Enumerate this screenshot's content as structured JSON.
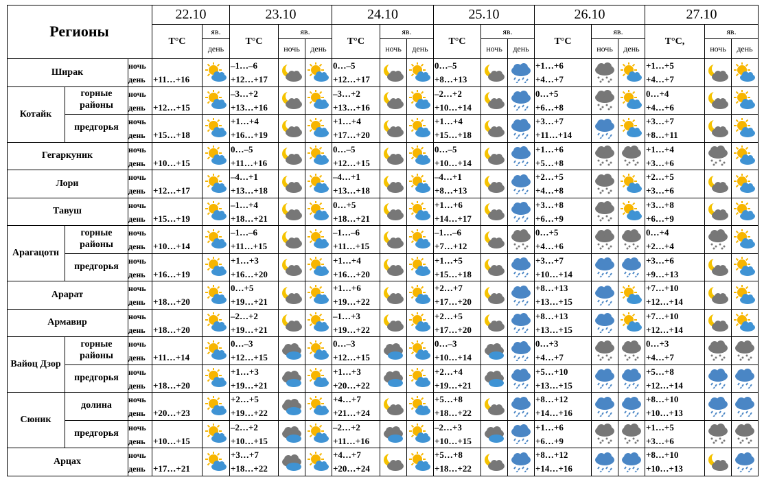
{
  "header": {
    "regions_label": "Регионы",
    "dates": [
      "22.10",
      "23.10",
      "24.10",
      "25.10",
      "26.10",
      "27.10"
    ],
    "temp_label": "T°C",
    "temp_label_last": "T°C,",
    "phen_label": "яв.",
    "night_label": "ночь",
    "day_label": "день"
  },
  "rows": [
    {
      "region": "Ширак",
      "sub": "",
      "t22": "+11…+16",
      "i22": "sun",
      "t23": [
        "–1…–6",
        "+12…+17"
      ],
      "i23": [
        "moon",
        "sun"
      ],
      "t24": [
        "0…–5",
        "+12…+17"
      ],
      "i24": [
        "moon",
        "sun"
      ],
      "t25": [
        "0…–5",
        "+8…+13"
      ],
      "i25": [
        "moon",
        "rain"
      ],
      "t26": [
        "+1…+6",
        "+4…+7"
      ],
      "i26": [
        "sleet",
        "sun"
      ],
      "t27": [
        "+1…+5",
        "+4…+7"
      ],
      "i27": [
        "moon",
        "sun"
      ]
    },
    {
      "region": "Котайк",
      "sub": "горные районы",
      "t22": "+12…+15",
      "i22": "sun",
      "t23": [
        "–3…+2",
        "+13…+16"
      ],
      "i23": [
        "moon",
        "sun"
      ],
      "t24": [
        "–3…+2",
        "+13…+16"
      ],
      "i24": [
        "moon",
        "sun"
      ],
      "t25": [
        "–2…+2",
        "+10…+14"
      ],
      "i25": [
        "moon",
        "rain"
      ],
      "t26": [
        "0…+5",
        "+6…+8"
      ],
      "i26": [
        "sleet",
        "sun"
      ],
      "t27": [
        "0…+4",
        "+4…+6"
      ],
      "i27": [
        "moon",
        "sun"
      ]
    },
    {
      "region": "",
      "sub": "предгорья",
      "t22": "+15…+18",
      "i22": "sun",
      "t23": [
        "+1…+4",
        "+16…+19"
      ],
      "i23": [
        "moon",
        "sun"
      ],
      "t24": [
        "+1…+4",
        "+17…+20"
      ],
      "i24": [
        "moon",
        "sun"
      ],
      "t25": [
        "+1…+4",
        "+15…+18"
      ],
      "i25": [
        "moon",
        "rain"
      ],
      "t26": [
        "+3…+7",
        "+11…+14"
      ],
      "i26": [
        "rain",
        "sun"
      ],
      "t27": [
        "+3…+7",
        "+8…+11"
      ],
      "i27": [
        "moon",
        "sun"
      ]
    },
    {
      "region": "Гегаркуник",
      "sub": "",
      "t22": "+10…+15",
      "i22": "sun",
      "t23": [
        "0…–5",
        "+11…+16"
      ],
      "i23": [
        "moon",
        "sun"
      ],
      "t24": [
        "0…–5",
        "+12…+15"
      ],
      "i24": [
        "moon",
        "sun"
      ],
      "t25": [
        "0…–5",
        "+10…+14"
      ],
      "i25": [
        "moon",
        "rain"
      ],
      "t26": [
        "+1…+6",
        "+5…+8"
      ],
      "i26": [
        "sleet",
        "sleet"
      ],
      "t27": [
        "+1…+4",
        "+3…+6"
      ],
      "i27": [
        "sleet",
        "sun"
      ]
    },
    {
      "region": "Лори",
      "sub": "",
      "t22": "+12…+17",
      "i22": "sun",
      "t23": [
        "–4…+1",
        "+13…+18"
      ],
      "i23": [
        "moon",
        "sun"
      ],
      "t24": [
        "–4…+1",
        "+13…+18"
      ],
      "i24": [
        "moon",
        "sun"
      ],
      "t25": [
        "–4…+1",
        "+8…+13"
      ],
      "i25": [
        "moon",
        "rain"
      ],
      "t26": [
        "+2…+5",
        "+4…+8"
      ],
      "i26": [
        "sleet",
        "sun"
      ],
      "t27": [
        "+2…+5",
        "+3…+6"
      ],
      "i27": [
        "moon",
        "sun"
      ]
    },
    {
      "region": "Тавуш",
      "sub": "",
      "t22": "+15…+19",
      "i22": "sun",
      "t23": [
        "–1…+4",
        "+18…+21"
      ],
      "i23": [
        "moon",
        "sun"
      ],
      "t24": [
        "0…+5",
        "+18…+21"
      ],
      "i24": [
        "moon",
        "sun"
      ],
      "t25": [
        "+1…+6",
        "+14…+17"
      ],
      "i25": [
        "moon",
        "rain"
      ],
      "t26": [
        "+3…+8",
        "+6…+9"
      ],
      "i26": [
        "sleet",
        "sun"
      ],
      "t27": [
        "+3…+8",
        "+6…+9"
      ],
      "i27": [
        "moon",
        "sun"
      ]
    },
    {
      "region": "Арагацотн",
      "sub": "горные районы",
      "t22": "+10…+14",
      "i22": "sun",
      "t23": [
        "–1…–6",
        "+11…+15"
      ],
      "i23": [
        "moon",
        "sun"
      ],
      "t24": [
        "–1…–6",
        "+11…+15"
      ],
      "i24": [
        "moon",
        "sun"
      ],
      "t25": [
        "–1…–6",
        "+7…+12"
      ],
      "i25": [
        "moon",
        "sleet"
      ],
      "t26": [
        "0…+5",
        "+4…+6"
      ],
      "i26": [
        "sleet",
        "sleet"
      ],
      "t27": [
        "0…+4",
        "+2…+4"
      ],
      "i27": [
        "sleet",
        "sun"
      ]
    },
    {
      "region": "",
      "sub": "предгорья",
      "t22": "+16…+19",
      "i22": "sun",
      "t23": [
        "+1…+3",
        "+16…+20"
      ],
      "i23": [
        "moon",
        "sun"
      ],
      "t24": [
        "+1…+4",
        "+16…+20"
      ],
      "i24": [
        "moon",
        "sun"
      ],
      "t25": [
        "+1…+5",
        "+15…+18"
      ],
      "i25": [
        "moon",
        "rain"
      ],
      "t26": [
        "+3…+7",
        "+10…+14"
      ],
      "i26": [
        "rain",
        "rain"
      ],
      "t27": [
        "+3…+6",
        "+9…+13"
      ],
      "i27": [
        "moon",
        "sun"
      ]
    },
    {
      "region": "Арарат",
      "sub": "",
      "t22": "+18…+20",
      "i22": "sun",
      "t23": [
        "0…+5",
        "+19…+21"
      ],
      "i23": [
        "moon",
        "sun"
      ],
      "t24": [
        "+1…+6",
        "+19…+22"
      ],
      "i24": [
        "moon",
        "sun"
      ],
      "t25": [
        "+2…+7",
        "+17…+20"
      ],
      "i25": [
        "moon",
        "rain"
      ],
      "t26": [
        "+8…+13",
        "+13…+15"
      ],
      "i26": [
        "rain",
        "sun"
      ],
      "t27": [
        "+7…+10",
        "+12…+14"
      ],
      "i27": [
        "moon",
        "sun"
      ]
    },
    {
      "region": "Армавир",
      "sub": "",
      "t22": "+18…+20",
      "i22": "sun",
      "t23": [
        "–2…+2",
        "+19…+21"
      ],
      "i23": [
        "moon",
        "sun"
      ],
      "t24": [
        "–1…+3",
        "+19…+22"
      ],
      "i24": [
        "moon",
        "sun"
      ],
      "t25": [
        "+2…+5",
        "+17…+20"
      ],
      "i25": [
        "moon",
        "rain"
      ],
      "t26": [
        "+8…+13",
        "+13…+15"
      ],
      "i26": [
        "rain",
        "sun"
      ],
      "t27": [
        "+7…+10",
        "+12…+14"
      ],
      "i27": [
        "moon",
        "sun"
      ]
    },
    {
      "region": "Вайоц Дзор",
      "sub": "горные районы",
      "t22": "+11…+14",
      "i22": "sun",
      "t23": [
        "0…–3",
        "+12…+15"
      ],
      "i23": [
        "cloud",
        "sun"
      ],
      "t24": [
        "0…–3",
        "+12…+15"
      ],
      "i24": [
        "cloud",
        "sun"
      ],
      "t25": [
        "0…–3",
        "+10…+14"
      ],
      "i25": [
        "cloud",
        "rain"
      ],
      "t26": [
        "0…+3",
        "+4…+7"
      ],
      "i26": [
        "sleet",
        "sleet"
      ],
      "t27": [
        "0…+3",
        "+4…+7"
      ],
      "i27": [
        "sleet",
        "sleet"
      ]
    },
    {
      "region": "",
      "sub": "предгорья",
      "t22": "+18…+20",
      "i22": "sun",
      "t23": [
        "+1…+3",
        "+19…+21"
      ],
      "i23": [
        "cloud",
        "sun"
      ],
      "t24": [
        "+1…+3",
        "+20…+22"
      ],
      "i24": [
        "cloud",
        "sun"
      ],
      "t25": [
        "+2…+4",
        "+19…+21"
      ],
      "i25": [
        "cloud",
        "rain"
      ],
      "t26": [
        "+5…+10",
        "+13…+15"
      ],
      "i26": [
        "rain",
        "rain"
      ],
      "t27": [
        "+5…+8",
        "+12…+14"
      ],
      "i27": [
        "rain",
        "rain"
      ]
    },
    {
      "region": "Сюник",
      "sub": "долина",
      "t22": "+20…+23",
      "i22": "sun",
      "t23": [
        "+2…+5",
        "+19…+22"
      ],
      "i23": [
        "cloud",
        "sun"
      ],
      "t24": [
        "+4…+7",
        "+21…+24"
      ],
      "i24": [
        "moon",
        "sun"
      ],
      "t25": [
        "+5…+8",
        "+18…+22"
      ],
      "i25": [
        "moon",
        "rain"
      ],
      "t26": [
        "+8…+12",
        "+14…+16"
      ],
      "i26": [
        "rain",
        "rain"
      ],
      "t27": [
        "+8…+10",
        "+10…+13"
      ],
      "i27": [
        "rain",
        "rain"
      ]
    },
    {
      "region": "",
      "sub": "предгорья",
      "t22": "+10…+15",
      "i22": "sun",
      "t23": [
        "–2…+2",
        "+10…+15"
      ],
      "i23": [
        "cloud",
        "sun"
      ],
      "t24": [
        "–2…+2",
        "+11…+16"
      ],
      "i24": [
        "cloud",
        "sun"
      ],
      "t25": [
        "–2…+3",
        "+10…+15"
      ],
      "i25": [
        "cloud",
        "rain"
      ],
      "t26": [
        "+1…+6",
        "+6…+9"
      ],
      "i26": [
        "sleet",
        "sleet"
      ],
      "t27": [
        "+1…+5",
        "+3…+6"
      ],
      "i27": [
        "sleet",
        "sleet"
      ]
    },
    {
      "region": "Арцах",
      "sub": "",
      "t22": "+17…+21",
      "i22": "sun",
      "t23": [
        "+3…+7",
        "+18…+22"
      ],
      "i23": [
        "cloud",
        "sun"
      ],
      "t24": [
        "+4…+7",
        "+20…+24"
      ],
      "i24": [
        "moon",
        "sun"
      ],
      "t25": [
        "+5…+8",
        "+18…+22"
      ],
      "i25": [
        "moon",
        "rain"
      ],
      "t26": [
        "+8…+12",
        "+14…+16"
      ],
      "i26": [
        "rain",
        "rain"
      ],
      "t27": [
        "+8…+10",
        "+10…+13"
      ],
      "i27": [
        "moon",
        "rain"
      ]
    }
  ],
  "icon_names": {
    "sun": "partly-sunny-icon",
    "moon": "partly-moon-icon",
    "rain": "rain-cloud-icon",
    "sleet": "sleet-cloud-icon",
    "cloud": "dark-cloud-icon"
  },
  "colors": {
    "sun": "#f7b500",
    "cloud_blue": "#3f93d4",
    "cloud_gray": "#777777",
    "moon": "#f5c200",
    "rain": "#4a86c5"
  }
}
